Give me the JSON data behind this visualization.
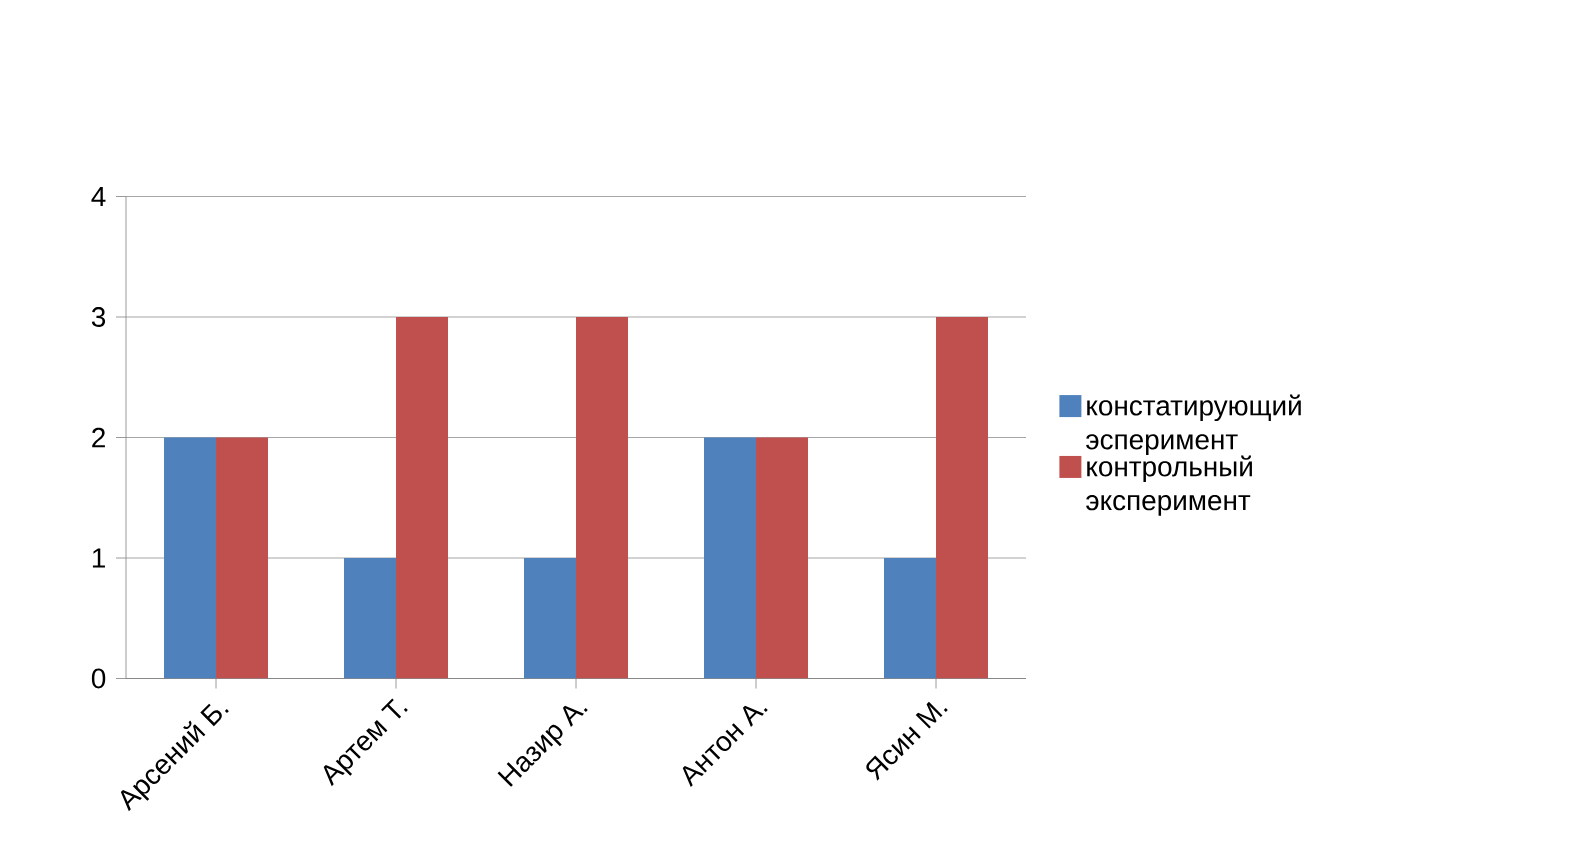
{
  "chart_data": {
    "type": "bar",
    "categories": [
      "Арсений Б.",
      "Артем Т.",
      "Назир А.",
      "Антон А.",
      "Ясин М."
    ],
    "series": [
      {
        "name": "констатирующий эсперимент",
        "color": "#4f81bd",
        "values": [
          2,
          1,
          1,
          2,
          1
        ]
      },
      {
        "name": "контрольный эксперимент",
        "color": "#c0504d",
        "values": [
          2,
          3,
          3,
          2,
          3
        ]
      }
    ],
    "ylim": [
      0,
      4
    ],
    "yticks": [
      0,
      1,
      2,
      3,
      4
    ],
    "grid": "y",
    "legend": "right"
  }
}
